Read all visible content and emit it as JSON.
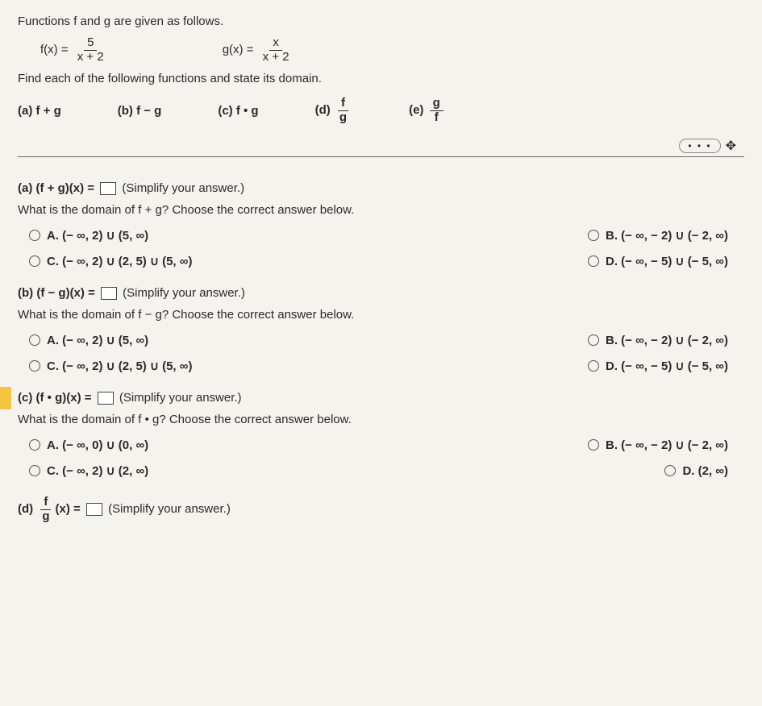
{
  "intro": "Functions f and g are given as follows.",
  "func": {
    "f_label": "f(x) =",
    "f_num": "5",
    "f_den": "x + 2",
    "g_label": "g(x) =",
    "g_num": "x",
    "g_den": "x + 2"
  },
  "find_line": "Find each of the following functions and state its domain.",
  "parts": {
    "a": "(a) f + g",
    "b": "(b) f − g",
    "c": "(c) f • g",
    "d_label": "(d)",
    "d_num": "f",
    "d_den": "g",
    "e_label": "(e)",
    "e_num": "g",
    "e_den": "f"
  },
  "ellipsis": "• • •",
  "move_glyph": "✥",
  "qa": {
    "expr_prefix": "(a) (f + g)(x) =",
    "expr_suffix": "(Simplify your answer.)",
    "domain_q": "What is the domain of f + g? Choose the correct answer below.",
    "optA": "A.  (− ∞, 2) ∪ (5, ∞)",
    "optB": "B.  (− ∞, − 2) ∪ (− 2, ∞)",
    "optC": "C.  (− ∞, 2) ∪ (2, 5) ∪ (5, ∞)",
    "optD": "D.  (− ∞, − 5) ∪ (− 5, ∞)"
  },
  "qb": {
    "expr_prefix": "(b) (f − g)(x) =",
    "expr_suffix": "(Simplify your answer.)",
    "domain_q": "What is the domain of f − g? Choose the correct answer below.",
    "optA": "A.  (− ∞, 2) ∪ (5, ∞)",
    "optB": "B.  (− ∞, − 2) ∪ (− 2, ∞)",
    "optC": "C.  (− ∞, 2) ∪ (2, 5) ∪ (5, ∞)",
    "optD": "D.  (− ∞, − 5) ∪ (− 5, ∞)"
  },
  "qc": {
    "expr_prefix": "(c) (f • g)(x) =",
    "expr_suffix": "(Simplify your answer.)",
    "domain_q": "What is the domain of f • g? Choose the correct answer below.",
    "optA": "A.  (− ∞, 0) ∪ (0, ∞)",
    "optB": "B.  (− ∞, − 2) ∪ (− 2, ∞)",
    "optC": "C.  (− ∞, 2) ∪ (2, ∞)",
    "optD": "D.  (2, ∞)"
  },
  "qd": {
    "label": "(d)",
    "num": "f",
    "den": "g",
    "tail": "(x) =",
    "suffix": "(Simplify your answer.)"
  }
}
